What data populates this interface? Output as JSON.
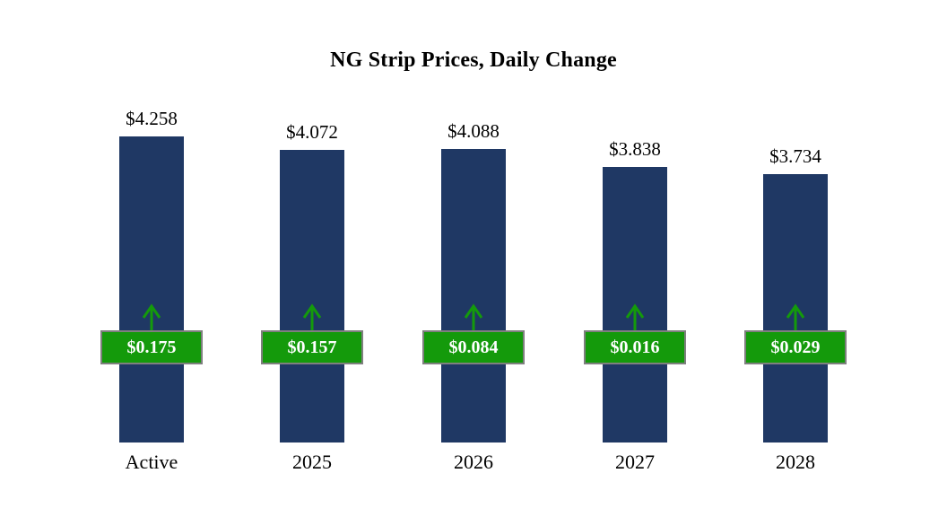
{
  "title": "NG Strip Prices, Daily Change",
  "colors": {
    "bar": "#1f3864",
    "change_green": "#149a0b",
    "badge_border": "#7f7f7f",
    "badge_text": "#ffffff",
    "text": "#000000",
    "background": "#ffffff"
  },
  "chart_data": {
    "type": "bar",
    "title": "NG Strip Prices, Daily Change",
    "categories": [
      "Active",
      "2025",
      "2026",
      "2027",
      "2028"
    ],
    "series": [
      {
        "name": "strip_price",
        "values": [
          4.258,
          4.072,
          4.088,
          3.838,
          3.734
        ],
        "labels": [
          "$4.258",
          "$4.072",
          "$4.088",
          "$3.838",
          "$3.734"
        ]
      },
      {
        "name": "daily_change",
        "values": [
          0.175,
          0.157,
          0.084,
          0.016,
          0.029
        ],
        "labels": [
          "$0.175",
          "$0.157",
          "$0.084",
          "$0.016",
          "$0.029"
        ]
      }
    ],
    "ylim": [
      0,
      4.5
    ],
    "xlabel": "",
    "ylabel": "",
    "grid": false,
    "legend_position": "none",
    "annotations": "each bar has a green up arrow and a green badge showing the daily change"
  }
}
